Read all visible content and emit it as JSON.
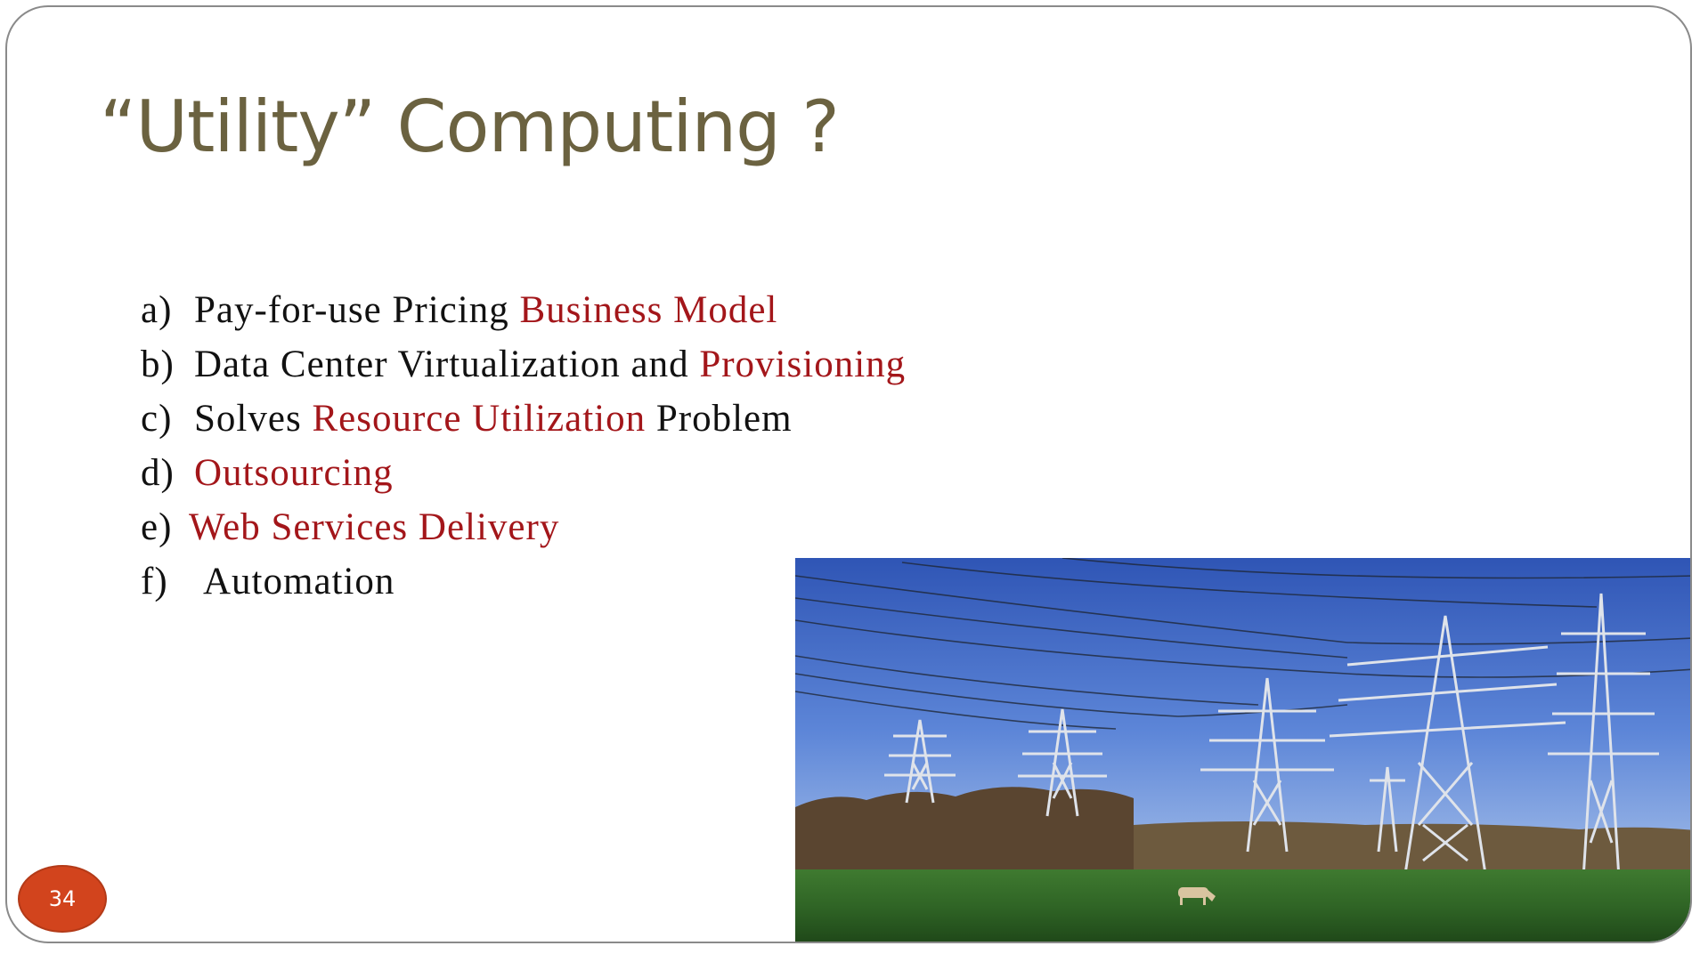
{
  "slide": {
    "title": "“Utility” Computing ?",
    "page_number": "34",
    "colors": {
      "title": "#6b6240",
      "highlight": "#a3161a",
      "text": "#111111",
      "badge": "#d2441d"
    },
    "bullets": [
      {
        "marker": "a)",
        "parts": [
          {
            "text": "Pay-for-use Pricing ",
            "highlight": false
          },
          {
            "text": "Business Model",
            "highlight": true
          }
        ]
      },
      {
        "marker": "b)",
        "parts": [
          {
            "text": "Data Center Virtualization and ",
            "highlight": false
          },
          {
            "text": "Provisioning",
            "highlight": true
          }
        ]
      },
      {
        "marker": "c)",
        "parts": [
          {
            "text": "Solves ",
            "highlight": false
          },
          {
            "text": "Resource Utilization",
            "highlight": true
          },
          {
            "text": " Problem",
            "highlight": false
          }
        ]
      },
      {
        "marker": "d)",
        "parts": [
          {
            "text": "Outsourcing",
            "highlight": true
          }
        ]
      },
      {
        "marker": "e)",
        "parts": [
          {
            "text": "Web Services Delivery",
            "highlight": true
          }
        ]
      },
      {
        "marker": "f)",
        "parts": [
          {
            "text": "Automation",
            "highlight": false
          }
        ]
      }
    ],
    "photo": {
      "subject": "electricity-pylons-over-pasture",
      "icon": "power-pylon-photo"
    }
  }
}
